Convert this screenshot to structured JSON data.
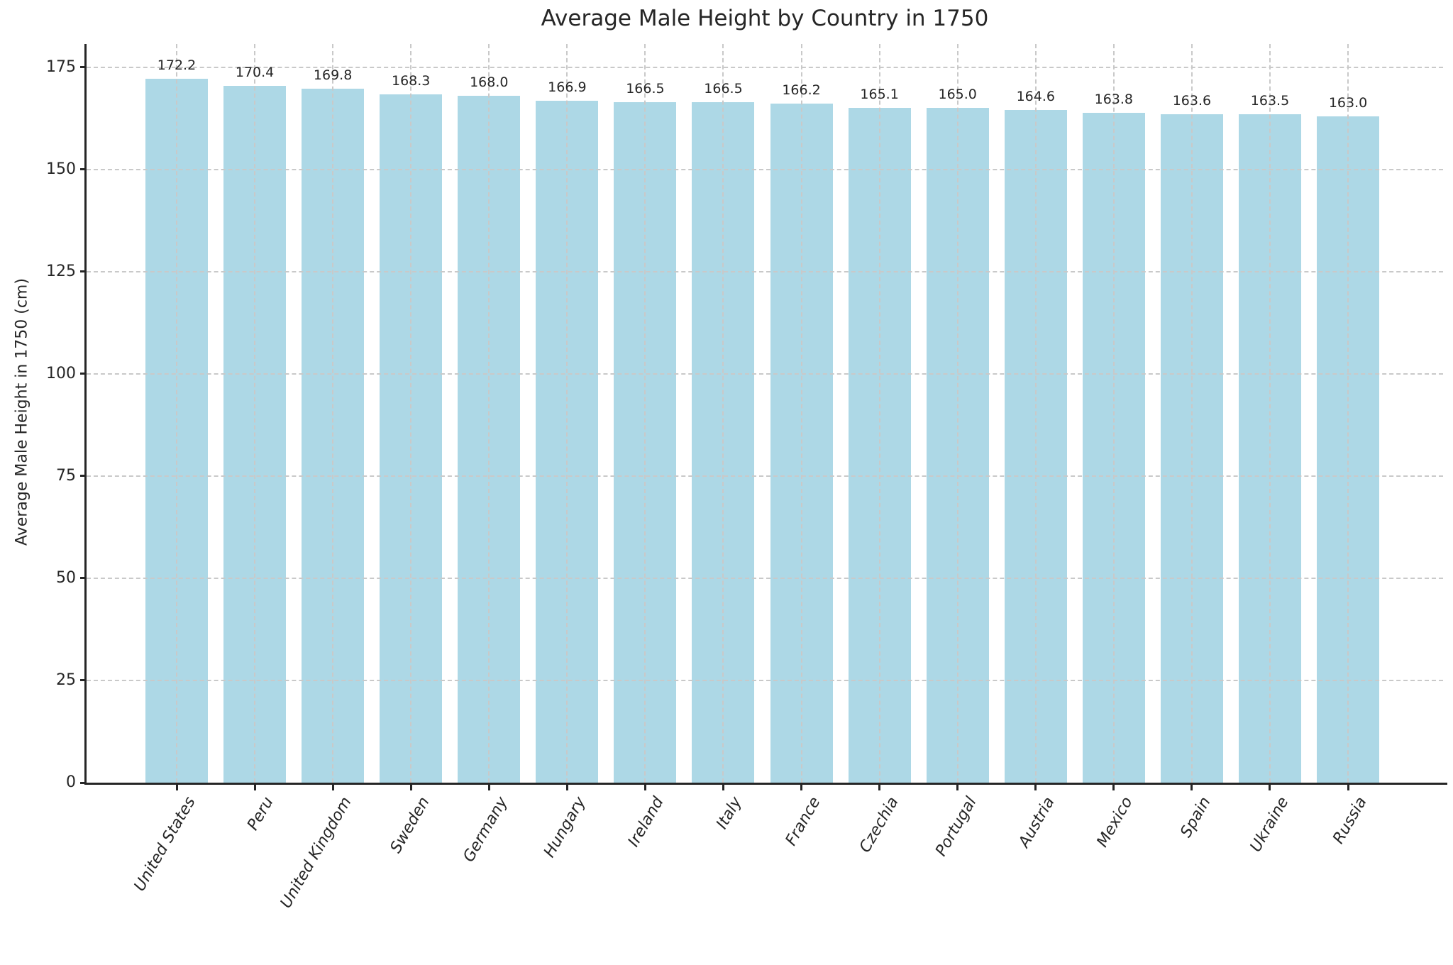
{
  "chart_data": {
    "type": "bar",
    "title": "Average Male Height by Country in 1750",
    "xlabel": "",
    "ylabel": "Average Male Height in 1750 (cm)",
    "categories": [
      "United States",
      "Peru",
      "United Kingdom",
      "Sweden",
      "Germany",
      "Hungary",
      "Ireland",
      "Italy",
      "France",
      "Czechia",
      "Portugal",
      "Austria",
      "Mexico",
      "Spain",
      "Ukraine",
      "Russia"
    ],
    "values": [
      172.2,
      170.4,
      169.8,
      168.3,
      168.0,
      166.9,
      166.5,
      166.5,
      166.2,
      165.1,
      165.0,
      164.6,
      163.8,
      163.6,
      163.5,
      163.0
    ],
    "bar_labels": [
      "172.2",
      "170.4",
      "169.8",
      "168.3",
      "168.0",
      "166.9",
      "166.5",
      "166.5",
      "166.2",
      "165.1",
      "165.0",
      "164.6",
      "163.8",
      "163.6",
      "163.5",
      "163.0"
    ],
    "yticks": [
      0,
      25,
      50,
      75,
      100,
      125,
      150,
      175
    ],
    "ylim": [
      0,
      180.7
    ],
    "grid": true,
    "grid_style": "dashed",
    "legend": false,
    "bar_color": "#ADD8E6",
    "text_color": "#262626",
    "grid_color": "#c9c9c9",
    "spine_color": "#262626"
  }
}
